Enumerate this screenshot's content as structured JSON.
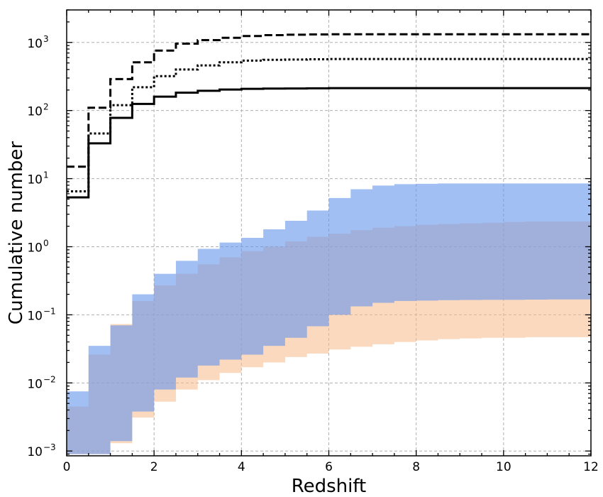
{
  "chart_data": {
    "type": "area",
    "xlabel": "Redshift",
    "ylabel": "Cumulative number",
    "xlim": [
      0,
      12
    ],
    "ylim": [
      0.00085,
      3000
    ],
    "yscale": "log",
    "grid": true,
    "x_ticks": [
      0,
      2,
      4,
      6,
      8,
      10,
      12
    ],
    "x_tick_labels": [
      "0",
      "2",
      "4",
      "6",
      "8",
      "10",
      "12"
    ],
    "y_ticks": [
      0.001,
      0.01,
      0.1,
      1,
      10,
      100,
      1000
    ],
    "y_tick_labels": [
      {
        "base": "10",
        "exp": "−3"
      },
      {
        "base": "10",
        "exp": "−2"
      },
      {
        "base": "10",
        "exp": "−1"
      },
      {
        "base": "10",
        "exp": "0"
      },
      {
        "base": "10",
        "exp": "1"
      },
      {
        "base": "10",
        "exp": "2"
      },
      {
        "base": "10",
        "exp": "3"
      }
    ],
    "bin_edges": [
      0,
      0.5,
      1,
      1.5,
      2,
      2.5,
      3,
      3.5,
      4,
      4.5,
      5,
      5.5,
      6,
      6.5,
      7,
      7.5,
      8,
      8.5,
      9,
      9.5,
      10,
      10.5,
      11,
      11.5,
      12
    ],
    "lines": [
      {
        "style": "dashed",
        "color": "#000000",
        "values": [
          15,
          110,
          290,
          510,
          760,
          960,
          1080,
          1170,
          1240,
          1280,
          1300,
          1310,
          1320,
          1320,
          1320,
          1320,
          1320,
          1320,
          1320,
          1320,
          1320,
          1320,
          1320,
          1320
        ]
      },
      {
        "style": "dotted",
        "color": "#000000",
        "values": [
          6.5,
          46,
          120,
          220,
          320,
          400,
          460,
          510,
          540,
          555,
          560,
          565,
          570,
          570,
          570,
          570,
          570,
          570,
          570,
          570,
          570,
          570,
          570,
          570
        ]
      },
      {
        "style": "solid",
        "color": "#000000",
        "values": [
          5.3,
          33,
          78,
          125,
          160,
          183,
          195,
          203,
          208,
          210,
          211,
          212,
          213,
          213,
          213,
          213,
          213,
          213,
          213,
          213,
          213,
          213,
          213,
          213
        ]
      }
    ],
    "bands": [
      {
        "color": "#f6b98a",
        "opacity": 0.55,
        "upper": [
          0.0045,
          0.026,
          0.073,
          0.16,
          0.27,
          0.4,
          0.55,
          0.7,
          0.86,
          1.0,
          1.2,
          1.4,
          1.55,
          1.75,
          1.9,
          2.0,
          2.1,
          2.15,
          2.2,
          2.25,
          2.3,
          2.35,
          2.35,
          2.35
        ],
        "lower": [
          0.0009,
          0.0009,
          0.0013,
          0.0031,
          0.0053,
          0.008,
          0.011,
          0.014,
          0.017,
          0.02,
          0.024,
          0.027,
          0.031,
          0.034,
          0.037,
          0.04,
          0.042,
          0.044,
          0.045,
          0.046,
          0.046,
          0.047,
          0.047,
          0.047
        ]
      },
      {
        "color": "#6495ed",
        "opacity": 0.6,
        "upper": [
          0.0075,
          0.035,
          0.07,
          0.2,
          0.4,
          0.62,
          0.93,
          1.15,
          1.35,
          1.8,
          2.4,
          3.4,
          5.2,
          7.0,
          7.9,
          8.3,
          8.4,
          8.5,
          8.5,
          8.5,
          8.5,
          8.5,
          8.5,
          8.5
        ],
        "lower": [
          0.0009,
          0.0009,
          0.0014,
          0.0038,
          0.008,
          0.012,
          0.018,
          0.022,
          0.026,
          0.035,
          0.046,
          0.068,
          0.1,
          0.133,
          0.15,
          0.16,
          0.162,
          0.164,
          0.165,
          0.166,
          0.166,
          0.167,
          0.168,
          0.168
        ]
      }
    ]
  }
}
